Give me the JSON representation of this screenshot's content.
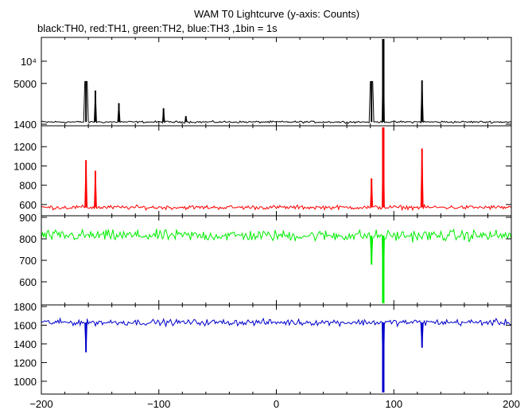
{
  "chart_data": {
    "type": "line",
    "title": "WAM T0 Lightcurve (y-axis: Counts)",
    "subtitle": "black:TH0, red:TH1, green:TH2, blue:TH3 ,1bin = 1s",
    "x_range": [
      -200,
      200
    ],
    "x_ticks": [
      -200,
      -100,
      0,
      100,
      200
    ],
    "panels": [
      {
        "name": "TH0",
        "color": "#000000",
        "scale": "log",
        "ylim": [
          1400,
          20000
        ],
        "y_ticks": [
          {
            "value": 1400,
            "label": "1400"
          },
          {
            "value": 5000,
            "label": "5000"
          },
          {
            "value": 10000,
            "label": "10⁴"
          }
        ],
        "baseline": 1500,
        "noise": 40,
        "features": [
          {
            "x": -162,
            "width": 1,
            "value": 5300
          },
          {
            "x": -154,
            "width": 0,
            "value": 4000
          },
          {
            "x": -134,
            "width": 0,
            "value": 2700
          },
          {
            "x": -96,
            "width": 0,
            "value": 2300
          },
          {
            "x": -77,
            "width": 0,
            "value": 1800
          },
          {
            "x": 81,
            "width": 1,
            "value": 5300
          },
          {
            "x": 91,
            "width": 0,
            "value": 20000
          },
          {
            "x": 124,
            "width": 0,
            "value": 5500
          }
        ]
      },
      {
        "name": "TH1",
        "color": "#ff0000",
        "scale": "linear",
        "ylim": [
          500,
          1400
        ],
        "y_ticks": [
          {
            "value": 600,
            "label": "600"
          },
          {
            "value": 800,
            "label": "800"
          },
          {
            "value": 1000,
            "label": "1000"
          },
          {
            "value": 1200,
            "label": "1200"
          }
        ],
        "baseline": 570,
        "noise": 18,
        "features": [
          {
            "x": -162,
            "width": 0,
            "value": 1060
          },
          {
            "x": -154,
            "width": 0,
            "value": 950
          },
          {
            "x": 81,
            "width": 0,
            "value": 870
          },
          {
            "x": 91,
            "width": 0,
            "value": 1400
          },
          {
            "x": 124,
            "width": 0,
            "value": 1180
          }
        ]
      },
      {
        "name": "TH2",
        "color": "#00ee00",
        "scale": "linear",
        "ylim": [
          500,
          900
        ],
        "y_ticks": [
          {
            "value": 600,
            "label": "600"
          },
          {
            "value": 700,
            "label": "700"
          },
          {
            "value": 800,
            "label": "800"
          },
          {
            "value": 900,
            "label": "900"
          }
        ],
        "baseline": 815,
        "noise": 22,
        "features": [
          {
            "x": 81,
            "width": 0,
            "value": 680
          },
          {
            "x": 91,
            "width": 0,
            "value": 500
          }
        ]
      },
      {
        "name": "TH3",
        "color": "#0000cc",
        "scale": "linear",
        "ylim": [
          880,
          1800
        ],
        "y_ticks": [
          {
            "value": 1000,
            "label": "1000"
          },
          {
            "value": 1200,
            "label": "1200"
          },
          {
            "value": 1400,
            "label": "1400"
          },
          {
            "value": 1600,
            "label": "1600"
          },
          {
            "value": 1800,
            "label": "1800"
          }
        ],
        "baseline": 1630,
        "noise": 28,
        "features": [
          {
            "x": -162,
            "width": 0,
            "value": 1310
          },
          {
            "x": 91,
            "width": 0,
            "value": 880
          },
          {
            "x": 124,
            "width": 0,
            "value": 1360
          }
        ]
      }
    ]
  }
}
